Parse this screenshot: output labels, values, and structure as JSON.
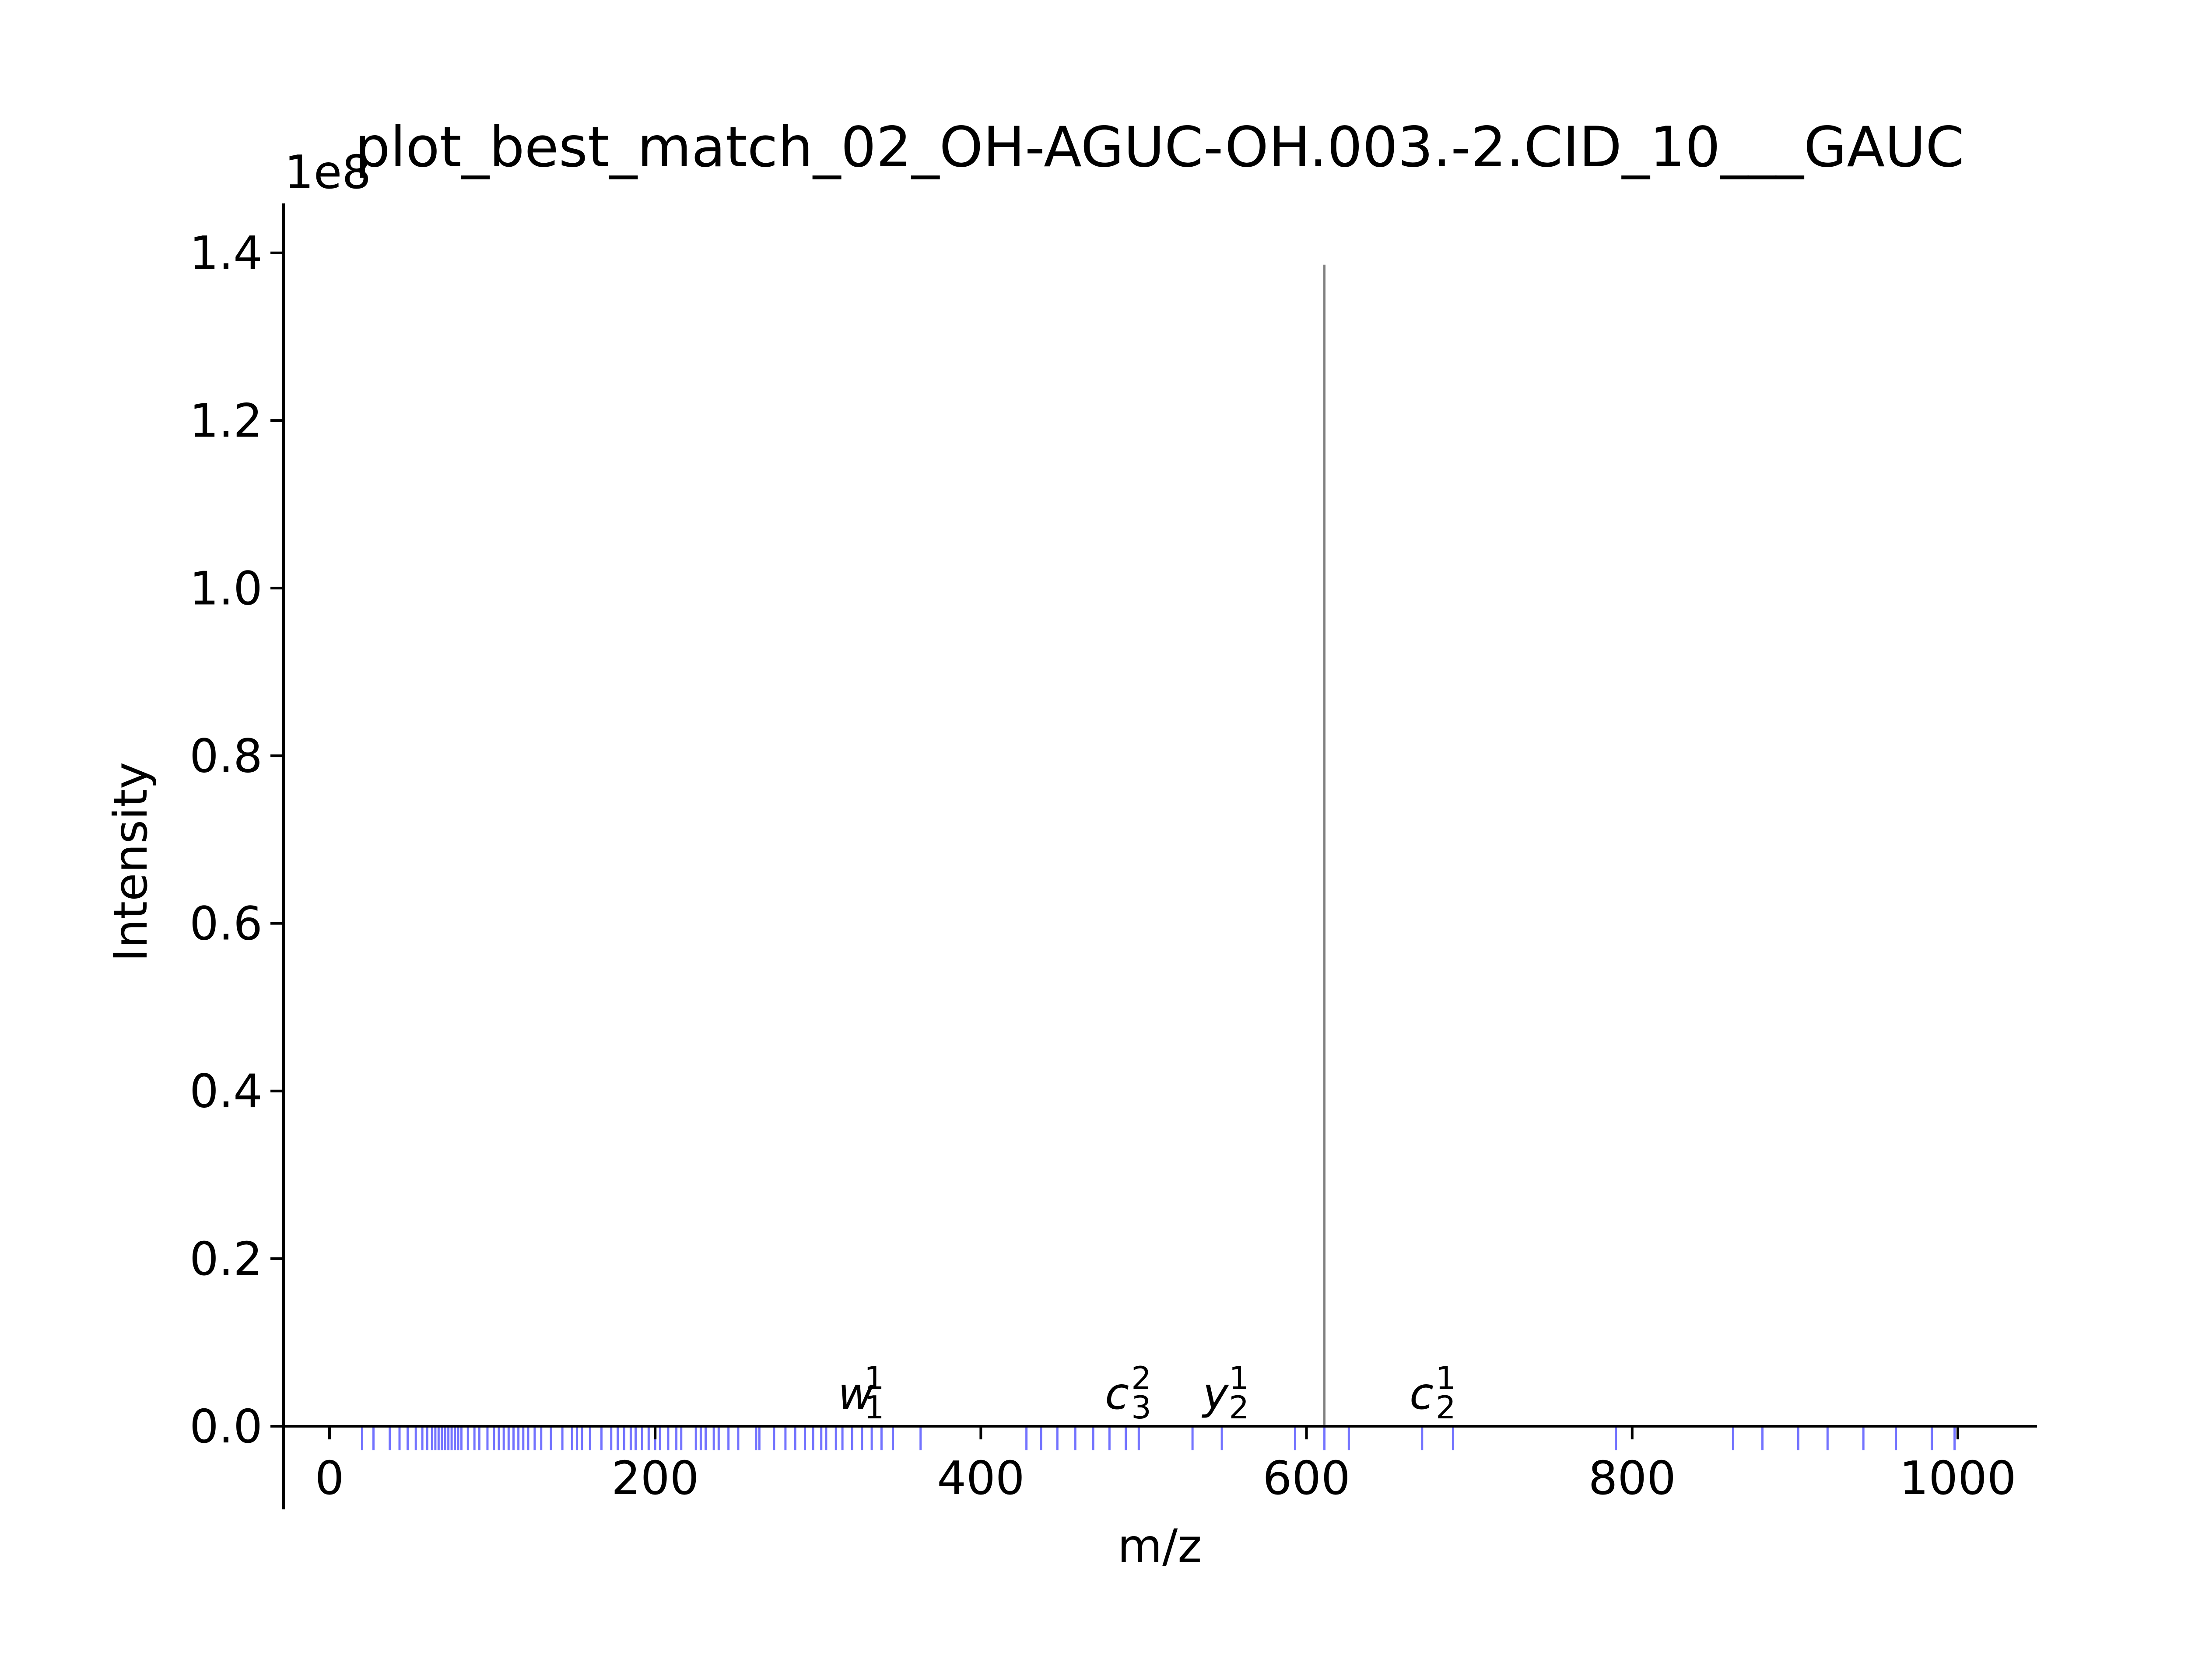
{
  "chart_data": {
    "type": "bar",
    "title": "plot_best_match_02_OH-AGUC-OH.003.-2.CID_10___GAUC",
    "xlabel": "m/z",
    "ylabel": "Intensity",
    "y_offset_label": "1e8",
    "xlim": [
      -30,
      1050
    ],
    "ylim": [
      -0.1,
      1.46
    ],
    "x_ticks": [
      0,
      200,
      400,
      600,
      800,
      1000
    ],
    "x_tick_labels": [
      "0",
      "200",
      "400",
      "600",
      "800",
      "1000"
    ],
    "y_ticks": [
      0.0,
      0.2,
      0.4,
      0.6,
      0.8,
      1.0,
      1.2,
      1.4
    ],
    "y_tick_labels": [
      "0.0",
      "0.2",
      "0.4",
      "0.6",
      "0.8",
      "1.0",
      "1.2",
      "1.4"
    ],
    "series": [
      {
        "name": "",
        "color": "#808080",
        "points": [
          {
            "x": 611,
            "y": 1.386
          }
        ]
      }
    ],
    "theoretical_fragments": {
      "color": "#0000ff",
      "x": [
        20,
        27,
        37,
        43,
        48,
        53,
        57,
        60,
        63,
        65,
        67,
        69,
        71,
        73,
        75,
        77,
        79,
        81,
        85,
        89,
        92,
        97,
        101,
        104,
        107,
        110,
        113,
        116,
        119,
        122,
        126,
        130,
        136,
        143,
        149,
        152,
        155,
        160,
        167,
        173,
        177,
        181,
        185,
        188,
        192,
        196,
        200,
        203,
        208,
        213,
        216,
        225,
        228,
        231,
        236,
        239,
        245,
        251,
        262,
        264,
        273,
        280,
        286,
        292,
        297,
        302,
        305,
        311,
        315,
        321,
        327,
        333,
        339,
        346,
        363,
        428,
        437,
        447,
        458,
        469,
        479,
        489,
        497,
        530,
        548,
        593,
        611,
        626,
        671,
        690,
        790,
        862,
        880,
        902,
        920,
        942,
        962,
        984,
        998
      ]
    },
    "annotations": [
      {
        "x": 323,
        "base": "w",
        "sub": "1",
        "sup": "1"
      },
      {
        "x": 487,
        "base": "c",
        "sub": "3",
        "sup": "2"
      },
      {
        "x": 547,
        "base": "y",
        "sub": "2",
        "sup": "1"
      },
      {
        "x": 674,
        "base": "c",
        "sub": "2",
        "sup": "1"
      }
    ],
    "grid": false
  }
}
